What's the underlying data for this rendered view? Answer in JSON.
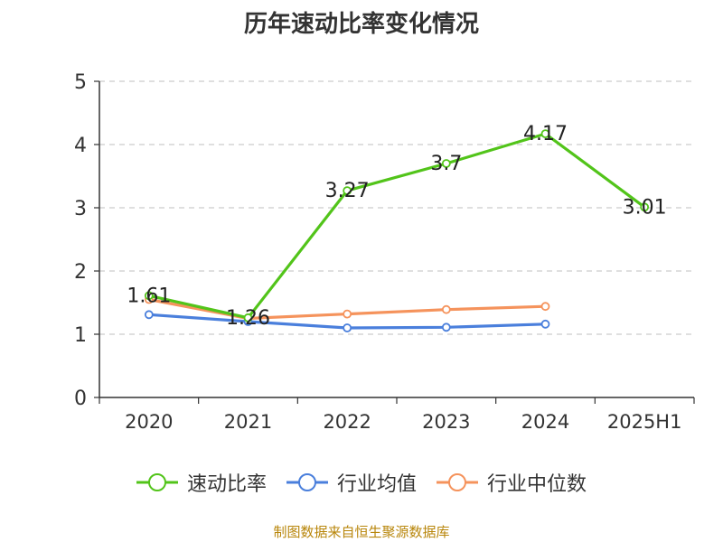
{
  "chart_data": {
    "type": "line",
    "title": "历年速动比率变化情况",
    "categories": [
      "2020",
      "2021",
      "2022",
      "2023",
      "2024",
      "2025H1"
    ],
    "ylim": [
      0,
      5
    ],
    "yticks": [
      "0",
      "1",
      "2",
      "3",
      "4",
      "5"
    ],
    "grid": true,
    "legend_position": "bottom",
    "series": [
      {
        "name": "速动比率",
        "color": "#52c41a",
        "values": [
          1.61,
          1.26,
          3.27,
          3.7,
          4.17,
          3.01
        ],
        "labels": [
          "1.61",
          "1.26",
          "3.27",
          "3.7",
          "4.17",
          "3.01"
        ]
      },
      {
        "name": "行业均值",
        "color": "#4a7fdc",
        "values": [
          1.31,
          1.2,
          1.1,
          1.11,
          1.16,
          null
        ]
      },
      {
        "name": "行业中位数",
        "color": "#f5935c",
        "values": [
          1.55,
          1.25,
          1.32,
          1.39,
          1.44,
          null
        ]
      }
    ],
    "source": "制图数据来自恒生聚源数据库"
  }
}
